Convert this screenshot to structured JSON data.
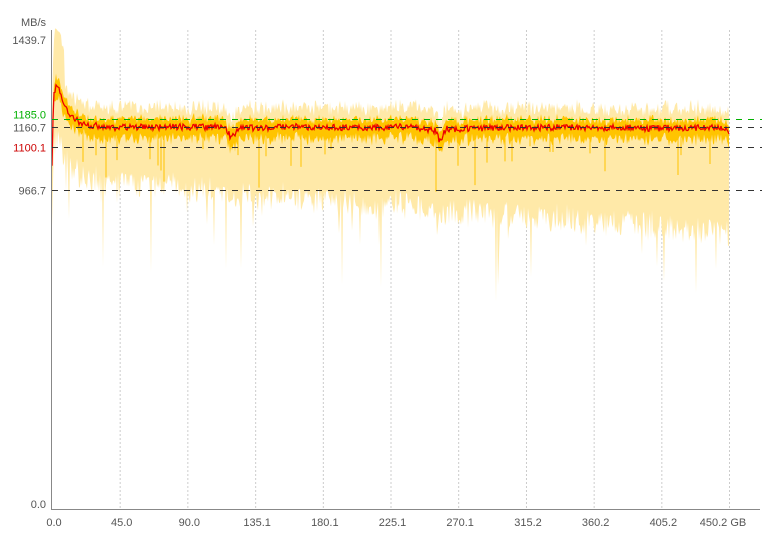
{
  "chart_data": {
    "type": "line",
    "ylabel": "MB/s",
    "xunit": "GB",
    "ylim": [
      0,
      1439.7
    ],
    "xlim": [
      0,
      450.2
    ],
    "grid": "vertical-dotted",
    "y_ticks": [
      "1439.7",
      "0.0"
    ],
    "x_ticks": [
      "0.0",
      "45.0",
      "90.0",
      "135.1",
      "180.1",
      "225.1",
      "270.1",
      "315.2",
      "360.2",
      "405.2",
      "450.2 GB"
    ],
    "x_tick_values": [
      0,
      45.0,
      90.0,
      135.1,
      180.1,
      225.1,
      270.1,
      315.2,
      360.2,
      405.2,
      450.2
    ],
    "reference_lines": [
      {
        "label": "1185.0",
        "value": 1185.0,
        "label_color": "#00b000",
        "line_color": "#00b000"
      },
      {
        "label": "1160.7",
        "value": 1160.7,
        "label_color": "#555555",
        "line_color": "#333333"
      },
      {
        "label": "1100.1",
        "value": 1100.1,
        "label_color": "#cc0000",
        "line_color": "#333333"
      },
      {
        "label": "966.7",
        "value": 966.7,
        "label_color": "#555555",
        "line_color": "#333333"
      }
    ],
    "series_colors": {
      "average": "#ee0000",
      "range_inner": "#ffc400",
      "range_outer": "#ffe9a8"
    },
    "average_series": {
      "x": [
        0,
        1,
        3,
        5,
        8,
        12,
        20,
        40,
        80,
        115,
        119,
        125,
        160,
        200,
        240,
        255,
        258,
        262,
        300,
        350,
        400,
        440,
        450.2
      ],
      "y": [
        1050,
        1250,
        1300,
        1280,
        1230,
        1200,
        1170,
        1160,
        1162,
        1160,
        1130,
        1158,
        1162,
        1160,
        1162,
        1150,
        1115,
        1155,
        1160,
        1160,
        1158,
        1160,
        1150
      ]
    }
  }
}
